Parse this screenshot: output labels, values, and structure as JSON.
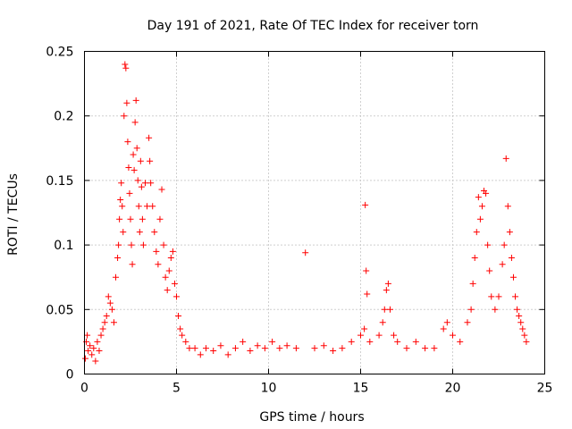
{
  "chart_data": {
    "type": "scatter",
    "title": "Day 191 of 2021, Rate Of TEC Index for receiver torn",
    "xlabel": "GPS time / hours",
    "ylabel": "ROTI / TECUs",
    "xlim": [
      0,
      25
    ],
    "ylim": [
      0,
      0.25
    ],
    "x_ticks": [
      0,
      5,
      10,
      15,
      20,
      25
    ],
    "x_tick_labels": [
      "0",
      "5",
      "10",
      "15",
      "20",
      "25"
    ],
    "y_ticks": [
      0,
      0.05,
      0.1,
      0.15,
      0.2,
      0.25
    ],
    "y_tick_labels": [
      "0",
      "0.05",
      "0.1",
      "0.15",
      "0.2",
      "0.25"
    ],
    "grid": true,
    "marker": "+",
    "color": "#ff0000",
    "series": [
      {
        "points": [
          [
            0.05,
            0.012
          ],
          [
            0.1,
            0.025
          ],
          [
            0.15,
            0.03
          ],
          [
            0.2,
            0.018
          ],
          [
            0.3,
            0.022
          ],
          [
            0.4,
            0.015
          ],
          [
            0.5,
            0.02
          ],
          [
            0.6,
            0.01
          ],
          [
            0.7,
            0.025
          ],
          [
            0.8,
            0.018
          ],
          [
            0.9,
            0.03
          ],
          [
            1.0,
            0.035
          ],
          [
            1.1,
            0.04
          ],
          [
            1.2,
            0.045
          ],
          [
            1.3,
            0.06
          ],
          [
            1.4,
            0.055
          ],
          [
            1.5,
            0.05
          ],
          [
            1.6,
            0.04
          ],
          [
            1.7,
            0.075
          ],
          [
            1.8,
            0.09
          ],
          [
            1.85,
            0.1
          ],
          [
            1.9,
            0.12
          ],
          [
            1.95,
            0.135
          ],
          [
            2.0,
            0.148
          ],
          [
            2.05,
            0.13
          ],
          [
            2.1,
            0.11
          ],
          [
            2.15,
            0.2
          ],
          [
            2.2,
            0.24
          ],
          [
            2.25,
            0.237
          ],
          [
            2.3,
            0.21
          ],
          [
            2.35,
            0.18
          ],
          [
            2.4,
            0.16
          ],
          [
            2.45,
            0.14
          ],
          [
            2.5,
            0.12
          ],
          [
            2.55,
            0.1
          ],
          [
            2.6,
            0.085
          ],
          [
            2.65,
            0.17
          ],
          [
            2.7,
            0.158
          ],
          [
            2.75,
            0.195
          ],
          [
            2.8,
            0.212
          ],
          [
            2.85,
            0.175
          ],
          [
            2.9,
            0.15
          ],
          [
            2.95,
            0.13
          ],
          [
            3.0,
            0.11
          ],
          [
            3.05,
            0.165
          ],
          [
            3.1,
            0.145
          ],
          [
            3.15,
            0.12
          ],
          [
            3.2,
            0.1
          ],
          [
            3.3,
            0.148
          ],
          [
            3.4,
            0.13
          ],
          [
            3.5,
            0.183
          ],
          [
            3.55,
            0.165
          ],
          [
            3.6,
            0.148
          ],
          [
            3.7,
            0.13
          ],
          [
            3.8,
            0.11
          ],
          [
            3.9,
            0.095
          ],
          [
            4.0,
            0.085
          ],
          [
            4.1,
            0.12
          ],
          [
            4.2,
            0.143
          ],
          [
            4.3,
            0.1
          ],
          [
            4.4,
            0.075
          ],
          [
            4.5,
            0.065
          ],
          [
            4.6,
            0.08
          ],
          [
            4.7,
            0.09
          ],
          [
            4.8,
            0.095
          ],
          [
            4.9,
            0.07
          ],
          [
            5.0,
            0.06
          ],
          [
            5.1,
            0.045
          ],
          [
            5.2,
            0.035
          ],
          [
            5.3,
            0.03
          ],
          [
            5.5,
            0.025
          ],
          [
            5.7,
            0.02
          ],
          [
            6.0,
            0.02
          ],
          [
            6.3,
            0.015
          ],
          [
            6.6,
            0.02
          ],
          [
            7.0,
            0.018
          ],
          [
            7.4,
            0.022
          ],
          [
            7.8,
            0.015
          ],
          [
            8.2,
            0.02
          ],
          [
            8.6,
            0.025
          ],
          [
            9.0,
            0.018
          ],
          [
            9.4,
            0.022
          ],
          [
            9.8,
            0.02
          ],
          [
            10.2,
            0.025
          ],
          [
            10.6,
            0.02
          ],
          [
            11.0,
            0.022
          ],
          [
            11.5,
            0.02
          ],
          [
            12.0,
            0.094
          ],
          [
            12.5,
            0.02
          ],
          [
            13.0,
            0.022
          ],
          [
            13.5,
            0.018
          ],
          [
            14.0,
            0.02
          ],
          [
            14.5,
            0.025
          ],
          [
            15.0,
            0.03
          ],
          [
            15.2,
            0.035
          ],
          [
            15.25,
            0.131
          ],
          [
            15.3,
            0.08
          ],
          [
            15.35,
            0.062
          ],
          [
            15.5,
            0.025
          ],
          [
            16.0,
            0.03
          ],
          [
            16.2,
            0.04
          ],
          [
            16.3,
            0.05
          ],
          [
            16.4,
            0.065
          ],
          [
            16.5,
            0.07
          ],
          [
            16.6,
            0.05
          ],
          [
            16.8,
            0.03
          ],
          [
            17.0,
            0.025
          ],
          [
            17.5,
            0.02
          ],
          [
            18.0,
            0.025
          ],
          [
            18.5,
            0.02
          ],
          [
            19.0,
            0.02
          ],
          [
            19.5,
            0.035
          ],
          [
            19.7,
            0.04
          ],
          [
            20.0,
            0.03
          ],
          [
            20.4,
            0.025
          ],
          [
            20.8,
            0.04
          ],
          [
            21.0,
            0.05
          ],
          [
            21.1,
            0.07
          ],
          [
            21.2,
            0.09
          ],
          [
            21.3,
            0.11
          ],
          [
            21.4,
            0.137
          ],
          [
            21.5,
            0.12
          ],
          [
            21.6,
            0.13
          ],
          [
            21.7,
            0.142
          ],
          [
            21.8,
            0.14
          ],
          [
            21.9,
            0.1
          ],
          [
            22.0,
            0.08
          ],
          [
            22.1,
            0.06
          ],
          [
            22.3,
            0.05
          ],
          [
            22.5,
            0.06
          ],
          [
            22.7,
            0.085
          ],
          [
            22.8,
            0.1
          ],
          [
            22.9,
            0.167
          ],
          [
            23.0,
            0.13
          ],
          [
            23.1,
            0.11
          ],
          [
            23.2,
            0.09
          ],
          [
            23.3,
            0.075
          ],
          [
            23.4,
            0.06
          ],
          [
            23.5,
            0.05
          ],
          [
            23.6,
            0.045
          ],
          [
            23.7,
            0.04
          ],
          [
            23.8,
            0.035
          ],
          [
            23.9,
            0.03
          ],
          [
            24.0,
            0.025
          ]
        ]
      }
    ]
  }
}
